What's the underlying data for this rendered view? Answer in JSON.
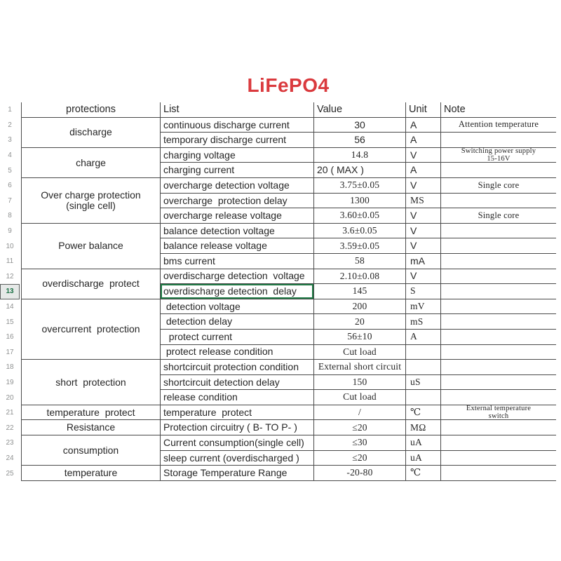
{
  "title": "LiFePO4",
  "colors": {
    "title_red": "#da3a3e",
    "grid_line": "#4a4a4a",
    "row_number_gray": "#8f9191",
    "selected_green": "#1f7a45",
    "selected_header_bg": "#e6e9e8",
    "text": "#262626"
  },
  "header": {
    "protections": "protections",
    "list": "List",
    "value": "Value",
    "unit": "Unit",
    "note": "Note"
  },
  "row_numbers": [
    1,
    2,
    3,
    4,
    5,
    6,
    7,
    8,
    9,
    10,
    11,
    12,
    13,
    14,
    15,
    16,
    17,
    18,
    19,
    20,
    21,
    22,
    23,
    24,
    25
  ],
  "selected_row_number": 13,
  "groups": [
    {
      "label": "discharge",
      "start": 2,
      "span": 2
    },
    {
      "label": "charge",
      "start": 4,
      "span": 2
    },
    {
      "label": "Over charge protection\n(single cell)",
      "start": 6,
      "span": 3
    },
    {
      "label": "Power balance",
      "start": 9,
      "span": 3
    },
    {
      "label": "overdischarge  protect",
      "start": 12,
      "span": 2
    },
    {
      "label": "overcurrent  protection",
      "start": 14,
      "span": 4
    },
    {
      "label": "short  protection",
      "start": 18,
      "span": 3
    },
    {
      "label": "temperature  protect",
      "start": 21,
      "span": 1
    },
    {
      "label": "Resistance",
      "start": 22,
      "span": 1
    },
    {
      "label": "consumption",
      "start": 23,
      "span": 2
    },
    {
      "label": "temperature",
      "start": 25,
      "span": 1
    }
  ],
  "rows": [
    {
      "num": 2,
      "list": "continuous discharge current",
      "value": "30",
      "unit": "A",
      "note": "Attention temperature"
    },
    {
      "num": 3,
      "list": "temporary discharge current",
      "value": "56",
      "unit": "A",
      "note": ""
    },
    {
      "num": 4,
      "list": "charging voltage",
      "value": "14.8",
      "unit": "V",
      "note": "Switching power supply\n15-16V"
    },
    {
      "num": 5,
      "list": "charging current",
      "value": "20 ( MAX )",
      "unit": "A",
      "note": ""
    },
    {
      "num": 6,
      "list": "overcharge detection voltage",
      "value": "3.75±0.05",
      "unit": "V",
      "note": "Single core"
    },
    {
      "num": 7,
      "list": "overcharge  protection delay",
      "value": "1300",
      "unit": "MS",
      "note": ""
    },
    {
      "num": 8,
      "list": "overcharge release voltage",
      "value": "3.60±0.05",
      "unit": "V",
      "note": "Single core"
    },
    {
      "num": 9,
      "list": "balance detection voltage",
      "value": "3.6±0.05",
      "unit": "V",
      "note": ""
    },
    {
      "num": 10,
      "list": "balance release voltage",
      "value": "3.59±0.05",
      "unit": "V",
      "note": ""
    },
    {
      "num": 11,
      "list": "bms current",
      "value": "58",
      "unit": "mA",
      "note": ""
    },
    {
      "num": 12,
      "list": "overdischarge detection  voltage",
      "value": "2.10±0.08",
      "unit": "V",
      "note": ""
    },
    {
      "num": 13,
      "list": "overdischarge detection  delay",
      "value": "145",
      "unit": "S",
      "note": ""
    },
    {
      "num": 14,
      "list": " detection voltage",
      "value": "200",
      "unit": "mV",
      "note": ""
    },
    {
      "num": 15,
      "list": " detection delay",
      "value": "20",
      "unit": "mS",
      "note": ""
    },
    {
      "num": 16,
      "list": "  protect current",
      "value": "56±10",
      "unit": "A",
      "note": ""
    },
    {
      "num": 17,
      "list": " protect release condition",
      "value": "Cut load",
      "unit": "",
      "note": ""
    },
    {
      "num": 18,
      "list": "shortcircuit protection condition",
      "value": "External short circuit",
      "unit": "",
      "note": ""
    },
    {
      "num": 19,
      "list": "shortcircuit detection delay",
      "value": "150",
      "unit": "uS",
      "note": ""
    },
    {
      "num": 20,
      "list": "release condition",
      "value": "Cut load",
      "unit": "",
      "note": ""
    },
    {
      "num": 21,
      "list": "temperature  protect",
      "value": "/",
      "unit": "℃",
      "note": "External temperature\nswitch"
    },
    {
      "num": 22,
      "list": "Protection circuitry ( B- TO P- )",
      "value": "≤20",
      "unit": "MΩ",
      "note": ""
    },
    {
      "num": 23,
      "list": "Current consumption(single cell)",
      "value": "≤30",
      "unit": "uA",
      "note": ""
    },
    {
      "num": 24,
      "list": "sleep current (overdischarged )",
      "value": "≤20",
      "unit": "uA",
      "note": ""
    },
    {
      "num": 25,
      "list": "Storage Temperature Range",
      "value": "-20-80",
      "unit": "℃",
      "note": ""
    }
  ]
}
